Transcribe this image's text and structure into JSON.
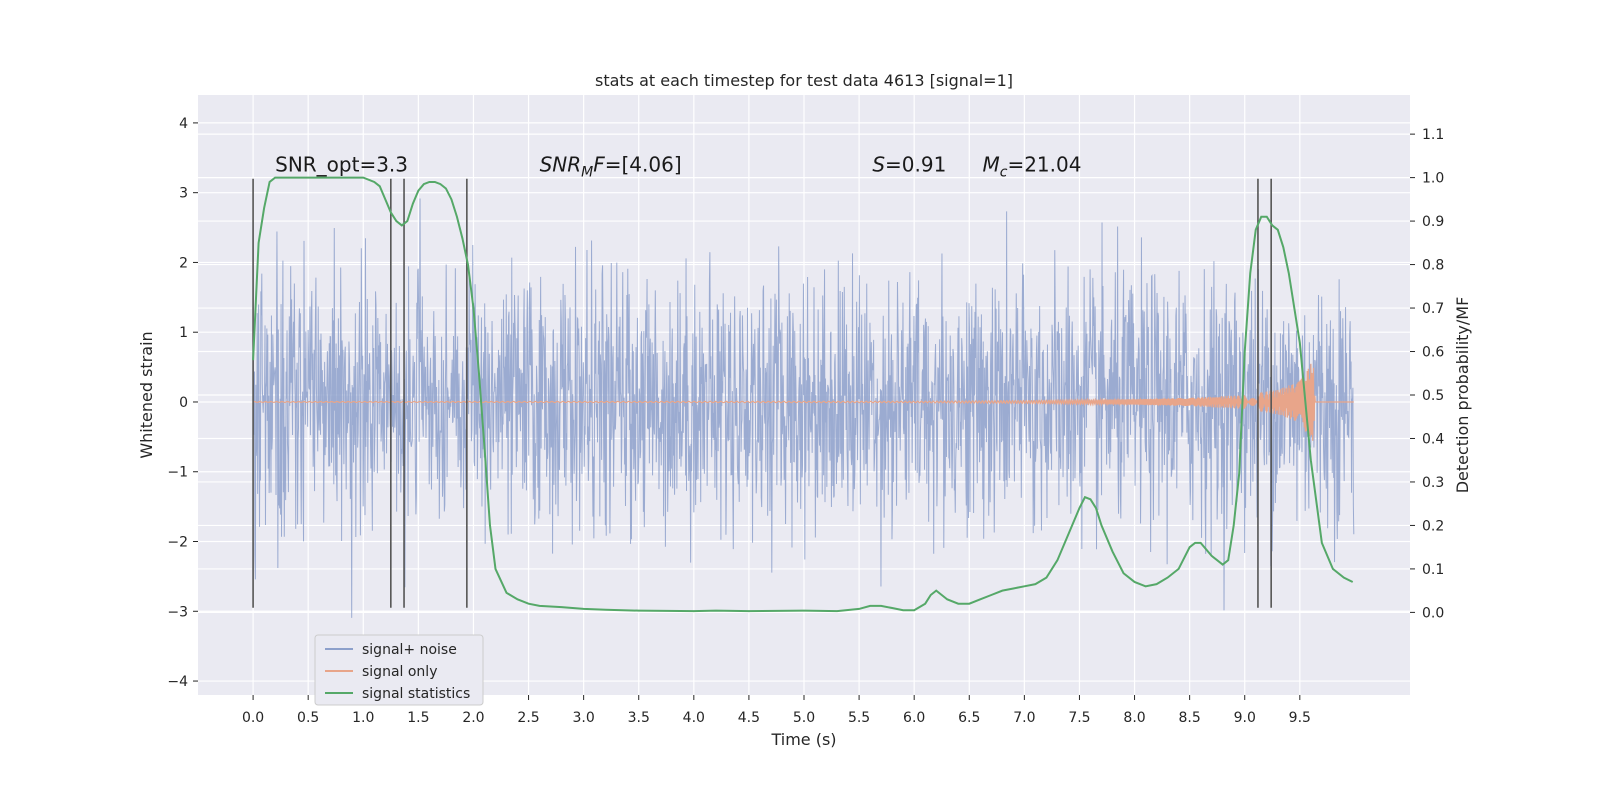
{
  "chart_data": {
    "type": "line",
    "title": "stats at each timestep for test data 4613 [signal=1]",
    "xlabel": "Time (s)",
    "ylabel_left": "Whitened strain",
    "ylabel_right": "Detection probability/MF",
    "xlim": [
      -0.5,
      10.5
    ],
    "ylim_left": [
      -4.2,
      4.4
    ],
    "ylim_right": [
      -0.19,
      1.19
    ],
    "x_ticks": [
      "0.0",
      "0.5",
      "1.0",
      "1.5",
      "2.0",
      "2.5",
      "3.0",
      "3.5",
      "4.0",
      "4.5",
      "5.0",
      "5.5",
      "6.0",
      "6.5",
      "7.0",
      "7.5",
      "8.0",
      "8.5",
      "9.0",
      "9.5"
    ],
    "y_ticks_left": [
      "4",
      "3",
      "2",
      "1",
      "0",
      "−1",
      "−2",
      "−3",
      "−4"
    ],
    "y_ticks_right": [
      "1.1",
      "1.0",
      "0.9",
      "0.8",
      "0.7",
      "0.6",
      "0.5",
      "0.4",
      "0.3",
      "0.2",
      "0.1",
      "0.0"
    ],
    "grid": true,
    "annotations": {
      "snr_opt": "SNR_opt=3.3",
      "snr_mf_italic": "SNR",
      "snr_mf_sub": "M",
      "snr_mf_f": "F",
      "snr_mf_rest": "=[4.06]",
      "s_var": "S",
      "s_rest": "=0.91",
      "mc_var": "M",
      "mc_sub": "c",
      "mc_rest": "=21.04"
    },
    "vertical_markers": [
      0.0,
      1.25,
      1.37,
      1.94,
      9.12,
      9.24
    ],
    "series": [
      {
        "name": "signal+ noise",
        "color": "#8da0cb",
        "axis": "left",
        "description": "whitened strain, noise envelope approx ±1.5 with peaks up to ±3.5, x range 0 to 10"
      },
      {
        "name": "signal only",
        "color": "#e8a58a",
        "axis": "left",
        "chirp": {
          "x": [
            0.0,
            6.0,
            7.0,
            8.0,
            8.5,
            9.0,
            9.3,
            9.5,
            9.62,
            9.64
          ],
          "amp": [
            0.005,
            0.01,
            0.02,
            0.04,
            0.06,
            0.1,
            0.18,
            0.3,
            0.6,
            0.0
          ]
        }
      },
      {
        "name": "signal statistics",
        "color": "#55a868",
        "axis": "right",
        "x": [
          0.0,
          0.05,
          0.1,
          0.15,
          0.2,
          0.3,
          0.5,
          0.7,
          0.9,
          1.0,
          1.1,
          1.15,
          1.2,
          1.25,
          1.3,
          1.35,
          1.4,
          1.45,
          1.5,
          1.55,
          1.6,
          1.65,
          1.7,
          1.75,
          1.8,
          1.85,
          1.9,
          1.95,
          2.0,
          2.05,
          2.1,
          2.15,
          2.2,
          2.3,
          2.4,
          2.5,
          2.6,
          2.8,
          3.0,
          3.2,
          3.5,
          4.0,
          4.2,
          4.5,
          5.0,
          5.3,
          5.5,
          5.6,
          5.7,
          5.8,
          5.9,
          6.0,
          6.1,
          6.15,
          6.2,
          6.25,
          6.3,
          6.4,
          6.5,
          6.6,
          6.7,
          6.8,
          6.9,
          7.0,
          7.1,
          7.2,
          7.3,
          7.4,
          7.5,
          7.55,
          7.6,
          7.65,
          7.7,
          7.8,
          7.9,
          8.0,
          8.1,
          8.2,
          8.3,
          8.4,
          8.5,
          8.55,
          8.6,
          8.7,
          8.8,
          8.85,
          8.9,
          8.95,
          9.0,
          9.05,
          9.1,
          9.15,
          9.2,
          9.25,
          9.3,
          9.35,
          9.4,
          9.5,
          9.6,
          9.7,
          9.8,
          9.9,
          9.98
        ],
        "values": [
          0.58,
          0.85,
          0.93,
          0.99,
          1.0,
          1.0,
          1.0,
          1.0,
          1.0,
          1.0,
          0.99,
          0.98,
          0.95,
          0.92,
          0.9,
          0.89,
          0.9,
          0.94,
          0.97,
          0.985,
          0.99,
          0.99,
          0.985,
          0.975,
          0.95,
          0.91,
          0.86,
          0.8,
          0.7,
          0.55,
          0.38,
          0.2,
          0.1,
          0.045,
          0.03,
          0.02,
          0.015,
          0.012,
          0.008,
          0.006,
          0.004,
          0.003,
          0.004,
          0.003,
          0.004,
          0.003,
          0.008,
          0.015,
          0.015,
          0.01,
          0.005,
          0.005,
          0.02,
          0.04,
          0.05,
          0.04,
          0.03,
          0.02,
          0.02,
          0.03,
          0.04,
          0.05,
          0.055,
          0.06,
          0.065,
          0.08,
          0.12,
          0.18,
          0.24,
          0.265,
          0.26,
          0.24,
          0.2,
          0.14,
          0.09,
          0.07,
          0.06,
          0.065,
          0.08,
          0.1,
          0.15,
          0.16,
          0.16,
          0.13,
          0.11,
          0.12,
          0.2,
          0.32,
          0.6,
          0.78,
          0.88,
          0.91,
          0.91,
          0.89,
          0.88,
          0.84,
          0.78,
          0.62,
          0.35,
          0.16,
          0.1,
          0.08,
          0.07
        ]
      }
    ],
    "legend": {
      "placement": "lower-left",
      "entries": [
        "signal+ noise",
        "signal only",
        "signal statistics"
      ]
    }
  }
}
